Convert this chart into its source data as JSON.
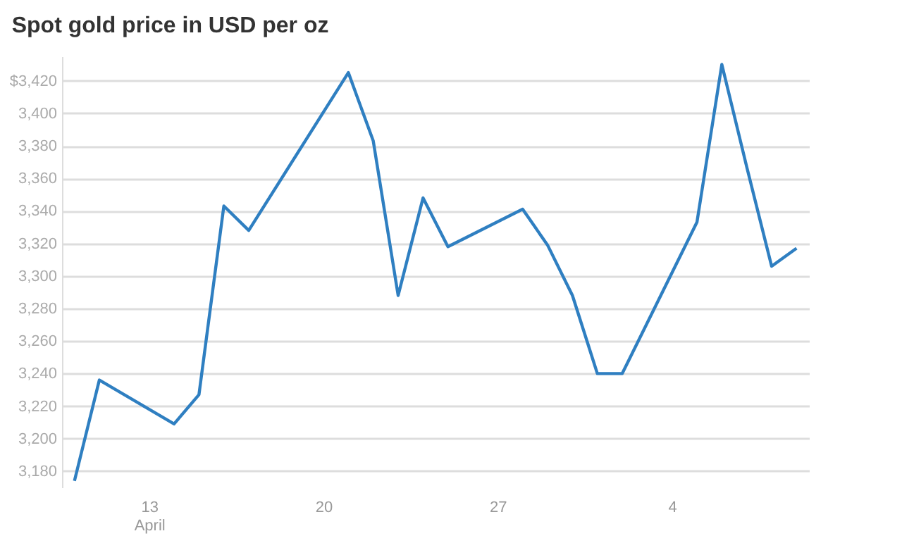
{
  "chart_data": {
    "type": "line",
    "title": "Spot gold price in USD per oz",
    "x": [
      "--04-10",
      "--04-11",
      "--04-14",
      "--04-15",
      "--04-16",
      "--04-17",
      "--04-21",
      "--04-22",
      "--04-23",
      "--04-24",
      "--04-25",
      "--04-28",
      "--04-29",
      "--04-30",
      "--05-01",
      "--05-02",
      "--05-05",
      "--05-06",
      "--05-07",
      "--05-08",
      "--05-09"
    ],
    "series": [
      {
        "color": "#2f7fc1",
        "values": [
          3174,
          3236,
          3209,
          3227,
          3343,
          3328,
          3425,
          3383,
          3288,
          3348,
          3318,
          3341,
          3319,
          3288,
          3240,
          3240,
          3333,
          3430,
          3367,
          3306,
          3317
        ]
      }
    ],
    "xlim": [
      "--04-09T12:00",
      "--05-09T12:00"
    ],
    "xticks": [
      {
        "value": "--04-13",
        "label": "13\nApril"
      },
      {
        "value": "--04-20",
        "label": "20"
      },
      {
        "value": "--04-27",
        "label": "27"
      },
      {
        "value": "--05-04",
        "label": "4"
      }
    ],
    "ylim": [
      3170,
      3435
    ],
    "yticks": [
      {
        "value": 3180,
        "label": "3,180"
      },
      {
        "value": 3200,
        "label": "3,200"
      },
      {
        "value": 3220,
        "label": "3,220"
      },
      {
        "value": 3240,
        "label": "3,240"
      },
      {
        "value": 3260,
        "label": "3,260"
      },
      {
        "value": 3280,
        "label": "3,280"
      },
      {
        "value": 3300,
        "label": "3,300"
      },
      {
        "value": 3320,
        "label": "3,320"
      },
      {
        "value": 3340,
        "label": "3,340"
      },
      {
        "value": 3360,
        "label": "3,360"
      },
      {
        "value": 3380,
        "label": "3,380"
      },
      {
        "value": 3400,
        "label": "3,400"
      },
      {
        "value": 3420,
        "label": "$3,420"
      }
    ],
    "grid": "y",
    "line_style": "solid",
    "marker": "none",
    "legend": false
  }
}
